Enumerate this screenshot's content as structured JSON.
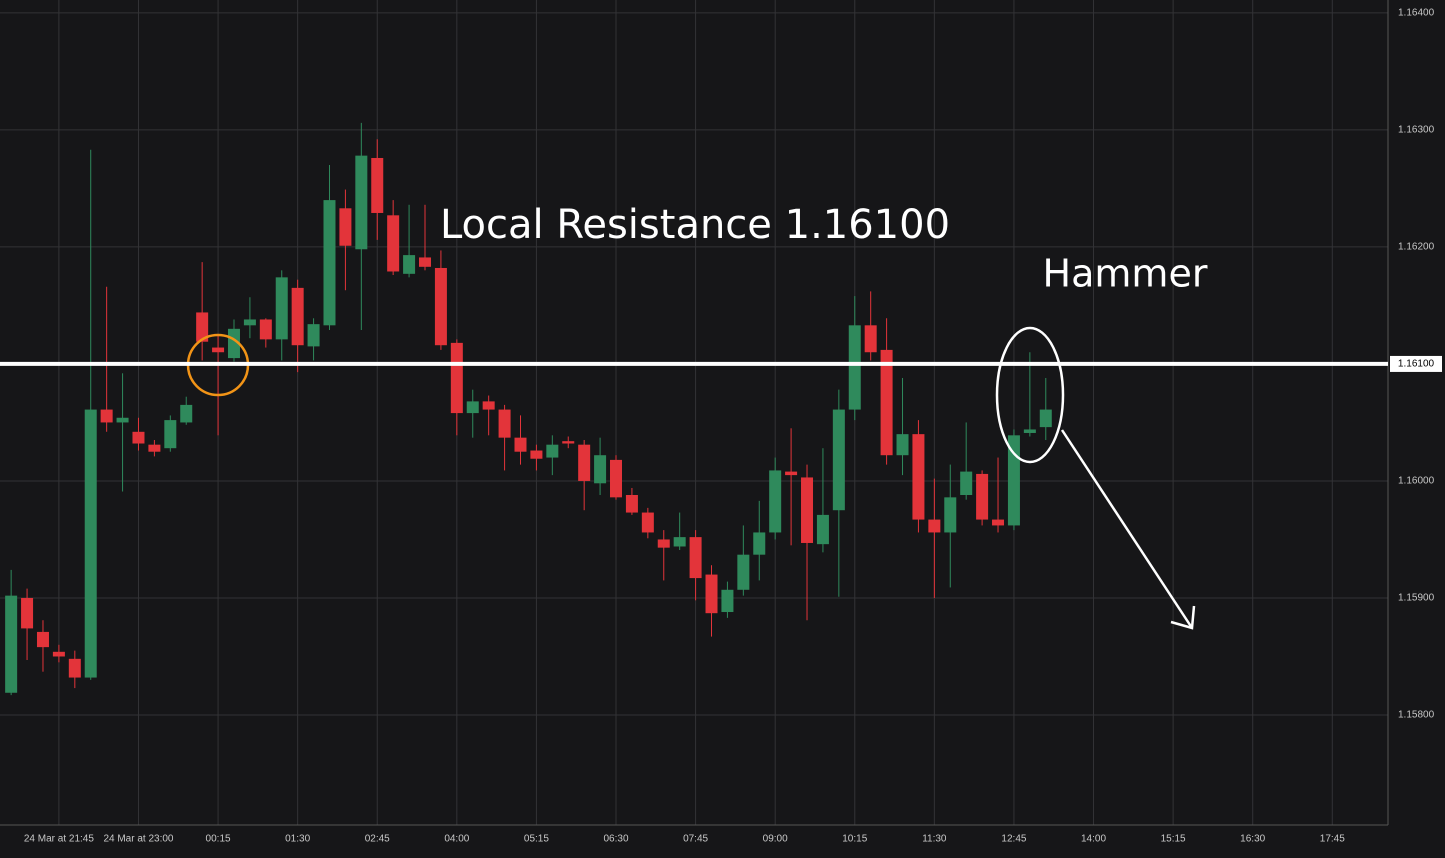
{
  "chart_data": {
    "type": "candlestick",
    "annotations": [
      {
        "text": "Local Resistance 1.16100"
      },
      {
        "text": "Hammer"
      }
    ],
    "hline": {
      "value": 1.161,
      "label": "1.16100",
      "color": "#ffffff"
    },
    "up_color": "#2f8a5c",
    "down_color": "#e3343a",
    "x": [
      -3,
      -2,
      -1,
      0,
      1,
      2,
      3,
      4,
      5,
      6,
      7,
      8,
      9,
      10,
      11,
      12,
      13,
      14,
      15,
      16,
      17,
      18,
      19,
      20,
      21,
      22,
      23,
      24,
      25,
      26,
      27,
      28,
      29,
      30,
      31,
      32,
      33,
      34,
      35,
      36,
      37,
      38,
      39,
      40,
      41,
      42,
      43,
      44,
      45,
      46,
      47,
      48,
      49,
      50,
      51,
      52,
      53,
      54,
      55,
      56,
      57,
      58,
      59,
      60,
      61,
      62
    ],
    "open": [
      1.15819,
      1.159,
      1.15871,
      1.15854,
      1.15848,
      1.15832,
      1.16061,
      1.1605,
      1.16042,
      1.16031,
      1.16028,
      1.1605,
      1.16144,
      1.16114,
      1.16105,
      1.16133,
      1.16138,
      1.16121,
      1.16165,
      1.16115,
      1.16133,
      1.16233,
      1.16198,
      1.16276,
      1.16227,
      1.16177,
      1.16191,
      1.16182,
      1.16118,
      1.16058,
      1.16068,
      1.16061,
      1.16037,
      1.16026,
      1.1602,
      1.16034,
      1.16031,
      1.15998,
      1.16018,
      1.15988,
      1.15973,
      1.1595,
      1.15944,
      1.15952,
      1.1592,
      1.15888,
      1.15907,
      1.15937,
      1.15956,
      1.16008,
      1.16003,
      1.15946,
      1.15975,
      1.16061,
      1.16133,
      1.16112,
      1.16022,
      1.1604,
      1.15967,
      1.15956,
      1.15988,
      1.16006,
      1.15967,
      1.15962,
      1.16041,
      1.16046
    ],
    "high": [
      1.15924,
      1.15908,
      1.15881,
      1.1586,
      1.15855,
      1.16283,
      1.16166,
      1.16092,
      1.16054,
      1.16035,
      1.16056,
      1.16072,
      1.16187,
      1.16125,
      1.16138,
      1.16157,
      1.16139,
      1.1618,
      1.16172,
      1.16139,
      1.1627,
      1.16249,
      1.16306,
      1.16292,
      1.1624,
      1.16236,
      1.16236,
      1.16197,
      1.16121,
      1.16078,
      1.16073,
      1.16065,
      1.16056,
      1.16031,
      1.16039,
      1.16038,
      1.16035,
      1.16037,
      1.16022,
      1.15994,
      1.15977,
      1.15958,
      1.15973,
      1.15958,
      1.15928,
      1.15914,
      1.15962,
      1.15983,
      1.1602,
      1.16045,
      1.16014,
      1.16028,
      1.16078,
      1.16158,
      1.16162,
      1.16139,
      1.16088,
      1.16052,
      1.16002,
      1.16014,
      1.1605,
      1.16009,
      1.1602,
      1.16044,
      1.1611,
      1.16088
    ],
    "low": [
      1.15817,
      1.15847,
      1.15837,
      1.15845,
      1.15823,
      1.1583,
      1.16042,
      1.15991,
      1.16026,
      1.16021,
      1.16025,
      1.16048,
      1.16103,
      1.16039,
      1.16102,
      1.16122,
      1.16114,
      1.16103,
      1.16093,
      1.16103,
      1.16129,
      1.16163,
      1.16129,
      1.16206,
      1.16176,
      1.16174,
      1.1618,
      1.16112,
      1.16039,
      1.16037,
      1.16039,
      1.16009,
      1.16014,
      1.16009,
      1.16005,
      1.16028,
      1.15975,
      1.15988,
      1.15984,
      1.15971,
      1.15951,
      1.15915,
      1.15941,
      1.15898,
      1.15867,
      1.15883,
      1.15902,
      1.15915,
      1.1595,
      1.15945,
      1.15881,
      1.15939,
      1.15901,
      1.16052,
      1.16103,
      1.16014,
      1.16005,
      1.15956,
      1.159,
      1.15909,
      1.15984,
      1.15962,
      1.15956,
      1.15958,
      1.16038,
      1.16035
    ],
    "close": [
      1.15902,
      1.15874,
      1.15858,
      1.1585,
      1.15832,
      1.16061,
      1.1605,
      1.16054,
      1.16032,
      1.16025,
      1.16052,
      1.16065,
      1.16119,
      1.1611,
      1.1613,
      1.16138,
      1.16121,
      1.16174,
      1.16116,
      1.16134,
      1.1624,
      1.16201,
      1.16278,
      1.16229,
      1.16179,
      1.16193,
      1.16183,
      1.16116,
      1.16058,
      1.16068,
      1.16061,
      1.16037,
      1.16025,
      1.16019,
      1.16031,
      1.16032,
      1.16,
      1.16022,
      1.15986,
      1.15973,
      1.15956,
      1.15943,
      1.15952,
      1.15917,
      1.15887,
      1.15907,
      1.15937,
      1.15956,
      1.16009,
      1.16005,
      1.15947,
      1.15971,
      1.16061,
      1.16133,
      1.1611,
      1.16022,
      1.1604,
      1.15967,
      1.15956,
      1.15986,
      1.16008,
      1.15967,
      1.15962,
      1.16039,
      1.16044,
      1.16061
    ],
    "xlim": [
      -3.7,
      83.5
    ],
    "xticks": [
      {
        "value": 0,
        "label": "24 Mar at 21:45"
      },
      {
        "value": 5,
        "label": "24 Mar at 23:00"
      },
      {
        "value": 10,
        "label": "00:15"
      },
      {
        "value": 15,
        "label": "01:30"
      },
      {
        "value": 20,
        "label": "02:45"
      },
      {
        "value": 25,
        "label": "04:00"
      },
      {
        "value": 30,
        "label": "05:15"
      },
      {
        "value": 35,
        "label": "06:30"
      },
      {
        "value": 40,
        "label": "07:45"
      },
      {
        "value": 45,
        "label": "09:00"
      },
      {
        "value": 50,
        "label": "10:15"
      },
      {
        "value": 55,
        "label": "11:30"
      },
      {
        "value": 60,
        "label": "12:45"
      },
      {
        "value": 65,
        "label": "14:00"
      },
      {
        "value": 70,
        "label": "15:15"
      },
      {
        "value": 75,
        "label": "16:30"
      },
      {
        "value": 80,
        "label": "17:45"
      }
    ],
    "ylim": [
      1.15706,
      1.16411
    ],
    "yticks": [
      {
        "value": 1.158,
        "label": "1.15800"
      },
      {
        "value": 1.159,
        "label": "1.15900"
      },
      {
        "value": 1.16,
        "label": "1.16000"
      },
      {
        "value": 1.161,
        "label": "1.16100"
      },
      {
        "value": 1.162,
        "label": "1.16200"
      },
      {
        "value": 1.163,
        "label": "1.16300"
      },
      {
        "value": 1.164,
        "label": "1.16400"
      }
    ],
    "grid": true
  }
}
